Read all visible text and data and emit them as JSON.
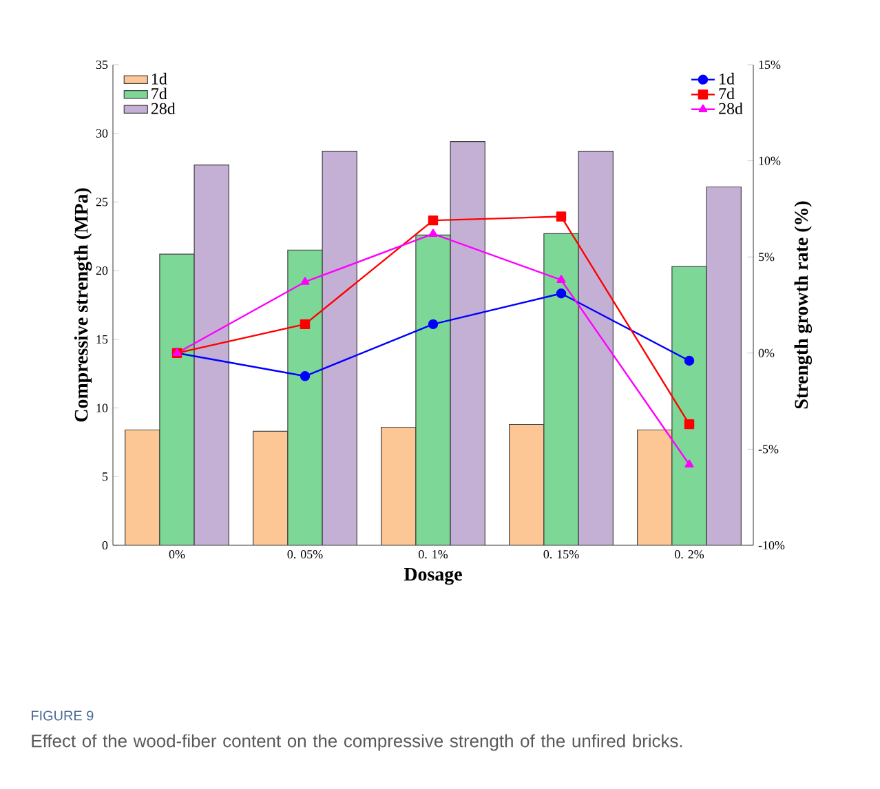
{
  "chart_data": {
    "type": "bar",
    "xlabel": "Dosage",
    "ylabel": "Compressive strength (MPa)",
    "y2label": "Strength growth rate (%)",
    "categories": [
      "0%",
      "0. 05%",
      "0. 1%",
      "0. 15%",
      "0. 2%"
    ],
    "series": [
      {
        "name": "1d",
        "color": "#fdc795",
        "values": [
          8.4,
          8.3,
          8.6,
          8.8,
          8.4
        ]
      },
      {
        "name": "7d",
        "color": "#7dd897",
        "values": [
          21.2,
          21.5,
          22.6,
          22.7,
          20.3
        ]
      },
      {
        "name": "28d",
        "color": "#c5b0d5",
        "values": [
          27.7,
          28.7,
          29.4,
          28.7,
          26.1
        ]
      },
      {
        "name": "1d",
        "type": "line",
        "axis": "y2",
        "color": "#0000ff",
        "marker": "circle",
        "values": [
          0,
          -1.2,
          1.5,
          3.1,
          -0.4
        ]
      },
      {
        "name": "7d",
        "type": "line",
        "axis": "y2",
        "color": "#ff0000",
        "marker": "square",
        "values": [
          0,
          1.5,
          6.9,
          7.1,
          -3.7
        ]
      },
      {
        "name": "28d",
        "type": "line",
        "axis": "y2",
        "color": "#ff00ff",
        "marker": "triangle",
        "values": [
          0,
          3.7,
          6.2,
          3.8,
          -5.8
        ]
      }
    ],
    "ylim": [
      0,
      35
    ],
    "yticks": [
      0,
      5,
      10,
      15,
      20,
      25,
      30,
      35
    ],
    "y2lim": [
      -10,
      15
    ],
    "y2ticks": [
      {
        "value": -10,
        "label": "-10%"
      },
      {
        "value": -5,
        "label": "-5%"
      },
      {
        "value": 0,
        "label": "0%"
      },
      {
        "value": 5,
        "label": "5%"
      },
      {
        "value": 10,
        "label": "10%"
      },
      {
        "value": 15,
        "label": "15%"
      }
    ],
    "legend": "top",
    "annotations": [
      "FIGURE 9",
      "Effect of the wood-fiber content on the compressive strength of the unfired bricks."
    ]
  }
}
